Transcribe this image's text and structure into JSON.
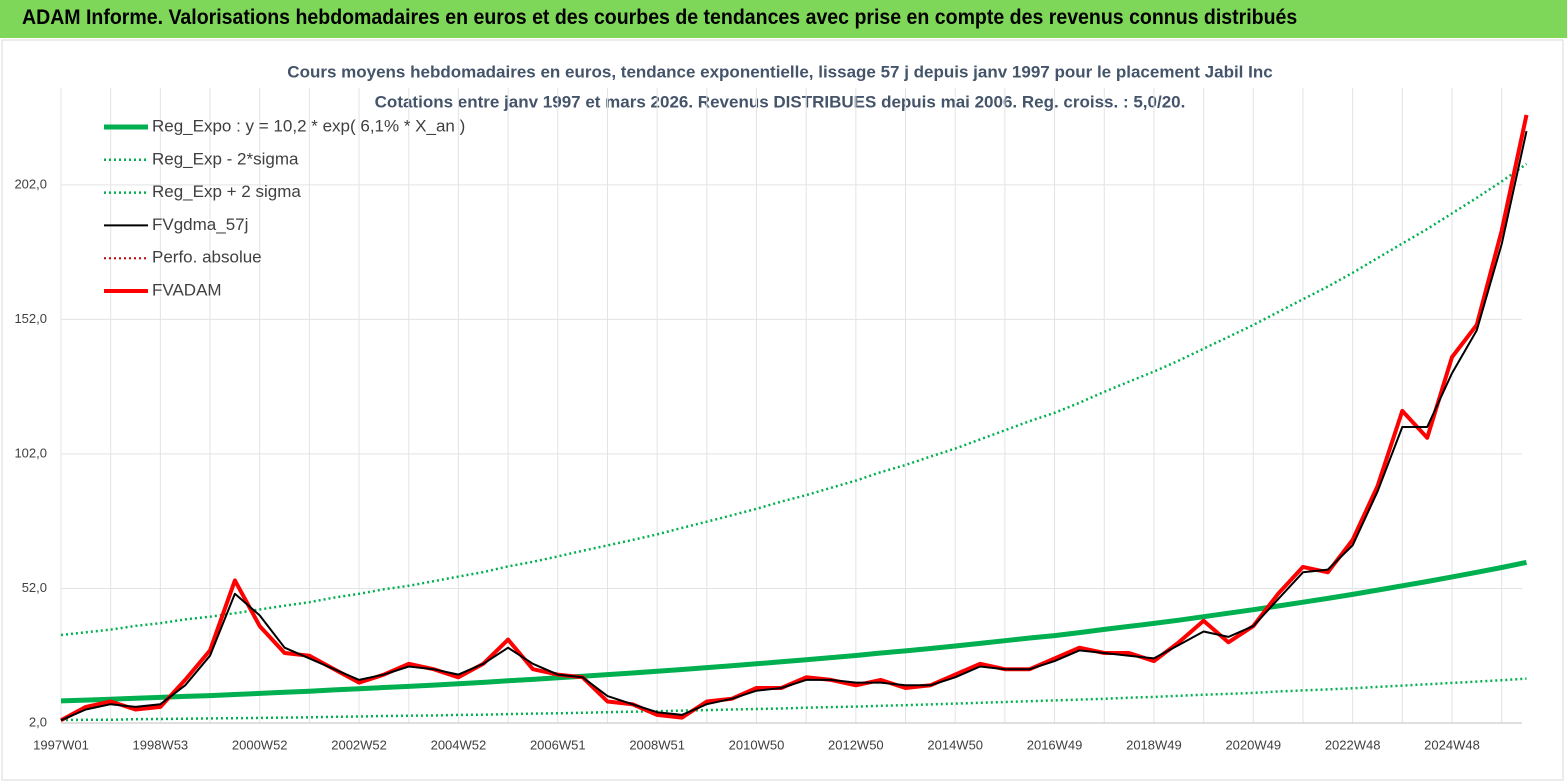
{
  "header": {
    "title": "ADAM Informe. Valorisations hebdomadaires en euros et des courbes de tendances avec prise en compte des revenus connus distribués"
  },
  "chart_data": {
    "type": "line",
    "title": "Cours moyens hebdomadaires en euros, tendance exponentielle, lissage 57 j depuis janv 1997 pour le placement Jabil Inc",
    "subtitle": "Cotations entre janv 1997 et mars 2026. Revenus DISTRIBUES depuis mai 2006. Reg. croiss. : 5,0/20.",
    "categories": [
      "1997W01",
      null,
      null,
      null,
      "1998W53",
      null,
      null,
      null,
      "2000W52",
      null,
      null,
      null,
      "2002W52",
      null,
      null,
      null,
      "2004W52",
      null,
      null,
      null,
      "2006W51",
      null,
      null,
      null,
      "2008W51",
      null,
      null,
      null,
      "2010W50",
      null,
      null,
      null,
      "2012W50",
      null,
      null,
      null,
      "2014W50",
      null,
      null,
      null,
      "2016W49",
      null,
      null,
      null,
      "2018W49",
      null,
      null,
      null,
      "2020W49",
      null,
      null,
      null,
      "2022W48",
      null,
      null,
      null,
      "2024W48",
      null,
      null,
      null
    ],
    "ylim": [
      2,
      238
    ],
    "yticks": [
      {
        "value": 2,
        "label": "2,0"
      },
      {
        "value": 52,
        "label": "52,0"
      },
      {
        "value": 102,
        "label": "102,0"
      },
      {
        "value": 152,
        "label": "152,0"
      },
      {
        "value": 202,
        "label": "202,0"
      }
    ],
    "grid": true,
    "legend": "upper left",
    "series": [
      {
        "name": "Reg_Expo : y = 10,2 * exp( 6,1% *  X_an )",
        "color": "#00b050",
        "line_style": "solid",
        "line_width": 5,
        "values": [
          10.2,
          10.5,
          10.8,
          11.2,
          11.5,
          11.9,
          12.2,
          12.6,
          13.0,
          13.4,
          13.8,
          14.3,
          14.7,
          15.2,
          15.6,
          16.1,
          16.6,
          17.1,
          17.7,
          18.2,
          18.8,
          19.4,
          20.0,
          20.6,
          21.2,
          21.9,
          22.6,
          23.3,
          24.0,
          24.8,
          25.5,
          26.3,
          27.1,
          28.0,
          28.8,
          29.7,
          30.6,
          31.6,
          32.6,
          33.6,
          34.5,
          35.6,
          36.8,
          37.9,
          39.0,
          40.2,
          41.5,
          42.8,
          44.1,
          45.5,
          46.9,
          48.3,
          49.8,
          51.4,
          53.0,
          54.6,
          56.3,
          58.0,
          59.8,
          61.7
        ]
      },
      {
        "name": "Reg_Exp - 2*sigma",
        "color": "#00b050",
        "line_style": "dotted",
        "line_width": 2.5,
        "values": [
          3.1,
          3.2,
          3.2,
          3.4,
          3.5,
          3.6,
          3.7,
          3.8,
          3.9,
          4.0,
          4.1,
          4.3,
          4.4,
          4.6,
          4.7,
          4.8,
          5.0,
          5.1,
          5.3,
          5.5,
          5.6,
          5.8,
          6.0,
          6.2,
          6.4,
          6.6,
          6.8,
          7.0,
          7.2,
          7.4,
          7.7,
          7.9,
          8.1,
          8.4,
          8.6,
          8.9,
          9.2,
          9.5,
          9.8,
          10.1,
          10.4,
          10.7,
          11.0,
          11.4,
          11.7,
          12.1,
          12.5,
          12.8,
          13.2,
          13.7,
          14.1,
          14.5,
          14.9,
          15.4,
          15.9,
          16.4,
          16.9,
          17.4,
          17.9,
          18.5
        ]
      },
      {
        "name": "Reg_Exp + 2 sigma",
        "color": "#00b050",
        "line_style": "dotted",
        "line_width": 2.5,
        "values": [
          34.7,
          35.7,
          36.7,
          38.1,
          39.1,
          40.5,
          41.5,
          42.8,
          44.2,
          45.6,
          46.9,
          48.6,
          50.0,
          51.7,
          53.0,
          54.7,
          56.4,
          58.1,
          60.2,
          61.9,
          63.9,
          66.0,
          68.0,
          70.0,
          72.1,
          74.5,
          76.8,
          79.2,
          81.6,
          84.3,
          86.7,
          89.4,
          92.1,
          95.2,
          97.9,
          101.0,
          104.0,
          107.4,
          110.8,
          114.2,
          117.3,
          121.0,
          125.1,
          128.9,
          132.6,
          136.7,
          141.1,
          145.5,
          149.9,
          154.7,
          159.5,
          164.2,
          169.3,
          174.8,
          180.2,
          185.6,
          191.4,
          197.2,
          203.3,
          209.8
        ]
      },
      {
        "name": "FVgdma_57j",
        "color": "#000000",
        "line_style": "solid",
        "line_width": 2,
        "values": [
          3,
          7,
          9,
          8,
          9,
          16,
          27,
          50,
          42,
          30,
          26,
          22,
          18,
          20,
          23,
          22,
          20,
          24,
          30,
          24,
          20,
          19,
          12,
          9,
          6,
          5,
          9,
          11,
          14,
          15,
          18,
          18,
          17,
          17,
          16,
          16,
          19,
          23,
          22,
          22,
          25,
          29,
          28,
          27,
          26,
          31,
          36,
          34,
          38,
          48,
          58,
          59,
          68,
          88,
          112,
          112,
          132,
          148,
          180,
          222
        ]
      },
      {
        "name": "Perfo. absolue",
        "color": "#c00000",
        "line_style": "dotted",
        "line_width": 2,
        "values": [
          3,
          8,
          10,
          7,
          8,
          18,
          29,
          55,
          38,
          28,
          27,
          22,
          17,
          20,
          24,
          22,
          19,
          24,
          33,
          22,
          20,
          19,
          10,
          9,
          5,
          4,
          10,
          11,
          15,
          15,
          19,
          18,
          16,
          18,
          15,
          16,
          20,
          24,
          22,
          22,
          26,
          30,
          28,
          28,
          25,
          32,
          40,
          32,
          38,
          50,
          60,
          58,
          70,
          90,
          118,
          108,
          138,
          150,
          185,
          228
        ]
      },
      {
        "name": "FVADAM",
        "color": "#ff0000",
        "line_style": "solid",
        "line_width": 4,
        "values": [
          3,
          8,
          10,
          7,
          8,
          18,
          29,
          55,
          38,
          28,
          27,
          22,
          17,
          20,
          24,
          22,
          19,
          24,
          33,
          22,
          20,
          19,
          10,
          9,
          5,
          4,
          10,
          11,
          15,
          15,
          19,
          18,
          16,
          18,
          15,
          16,
          20,
          24,
          22,
          22,
          26,
          30,
          28,
          28,
          25,
          32,
          40,
          32,
          38,
          50,
          60,
          58,
          70,
          90,
          118,
          108,
          138,
          150,
          185,
          228
        ]
      }
    ]
  }
}
